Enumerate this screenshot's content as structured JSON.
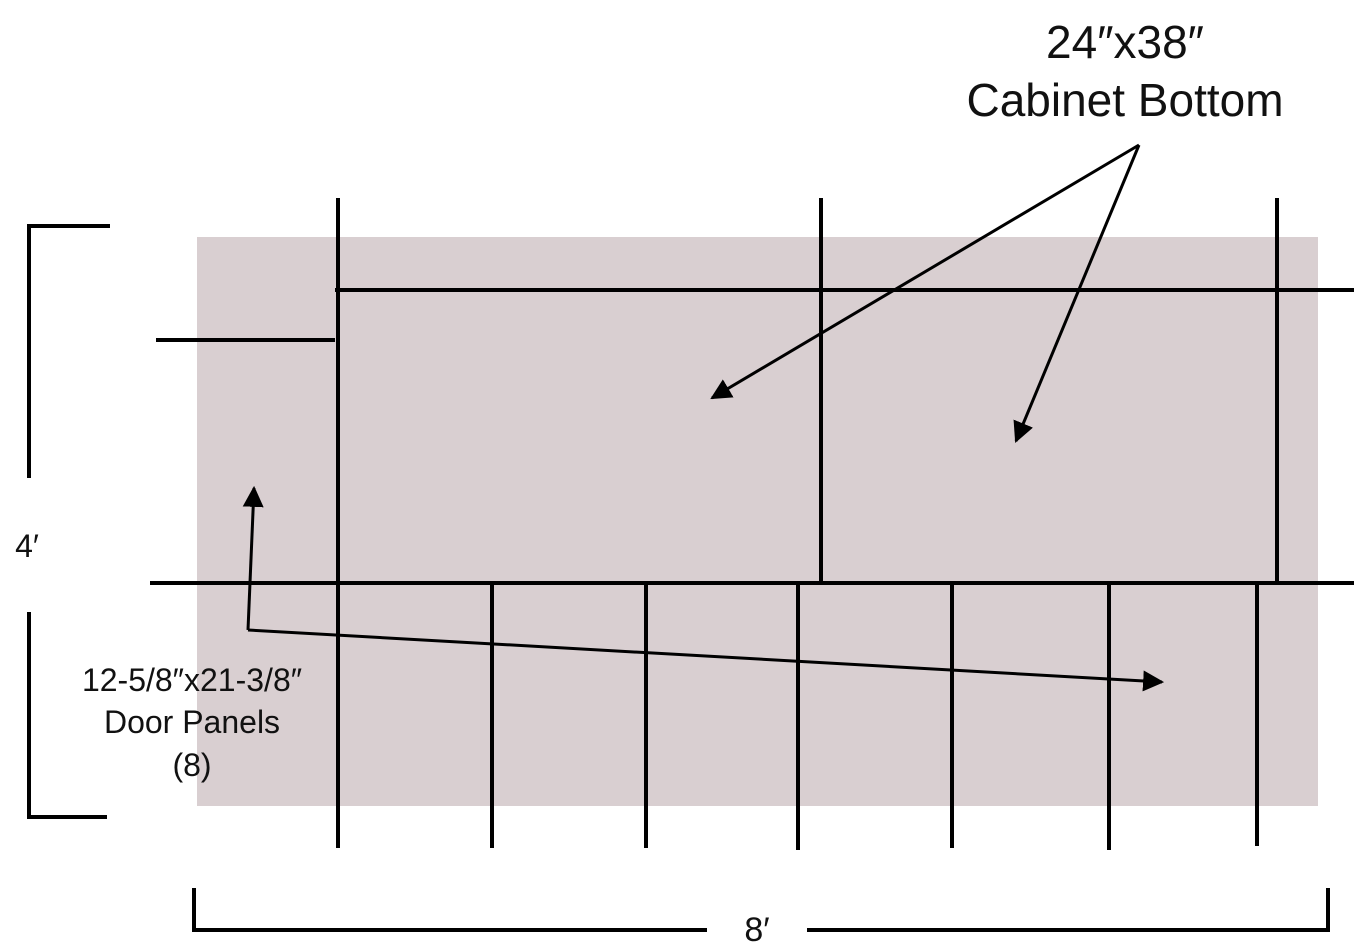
{
  "labels": {
    "cabinet_dims": "24″x38″",
    "cabinet_name": "Cabinet Bottom",
    "height": "4′",
    "door_dims": "12-5/8″x21-3/8″",
    "door_name": "Door Panels",
    "door_count": "(8)",
    "width": "8′"
  },
  "colors": {
    "board": "#d9cfd1",
    "line": "#000000"
  }
}
